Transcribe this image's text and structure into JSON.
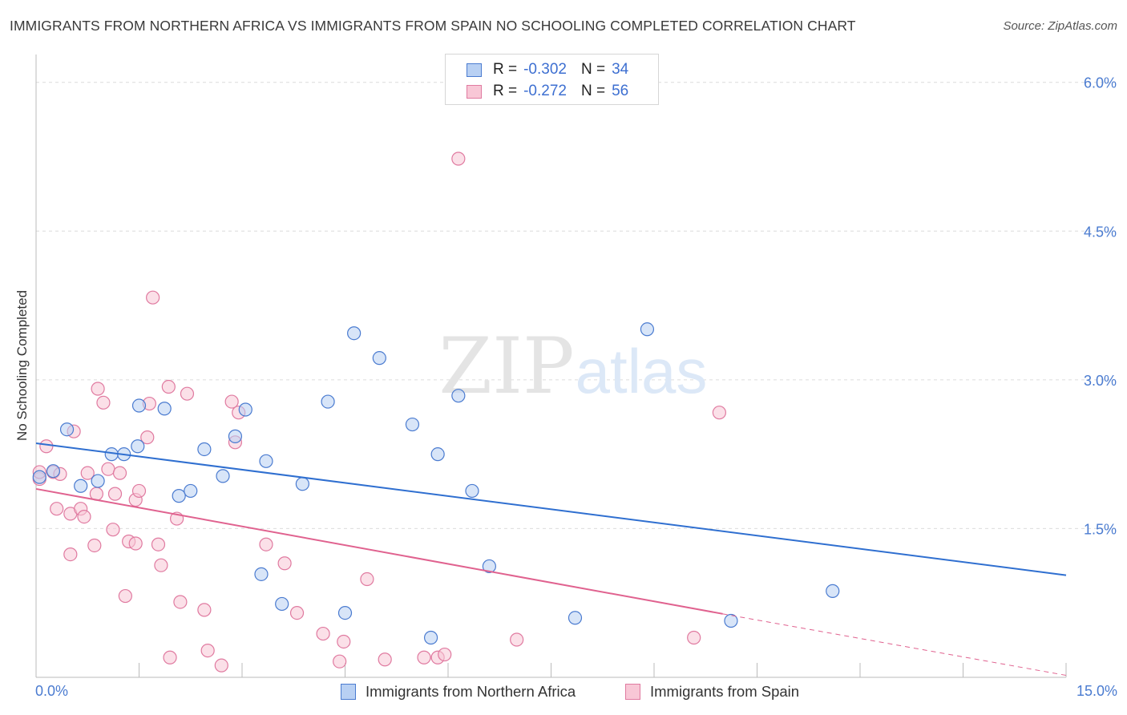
{
  "title": "IMMIGRANTS FROM NORTHERN AFRICA VS IMMIGRANTS FROM SPAIN NO SCHOOLING COMPLETED CORRELATION CHART",
  "source": "Source: ZipAtlas.com",
  "watermark": {
    "zip": "ZIP",
    "atlas": "atlas"
  },
  "colors": {
    "blue": "#4a7bd0",
    "blue_fill": "#b8d0f3",
    "blue_line": "#2f6fd0",
    "pink": "#e07aa0",
    "pink_fill": "#f8c7d6",
    "pink_line": "#e0628f",
    "grid": "#dcdcdc",
    "axis_text": "#4a7bd0"
  },
  "legend": {
    "rows": [
      {
        "r_label": "R =",
        "r_value": "-0.302",
        "n_label": "N =",
        "n_value": "34"
      },
      {
        "r_label": "R =",
        "r_value": "-0.272",
        "n_label": "N =",
        "n_value": "56"
      }
    ]
  },
  "chart_data": {
    "type": "scatter",
    "title": "IMMIGRANTS FROM NORTHERN AFRICA VS IMMIGRANTS FROM SPAIN NO SCHOOLING COMPLETED CORRELATION CHART",
    "xlabel": "",
    "ylabel": "No Schooling Completed",
    "xlim": [
      0,
      15
    ],
    "ylim": [
      0,
      6.2
    ],
    "x_tick_labels": {
      "min": "0.0%",
      "max": "15.0%"
    },
    "y_ticks": [
      1.5,
      3.0,
      4.5,
      6.0
    ],
    "y_tick_labels": [
      "1.5%",
      "3.0%",
      "4.5%",
      "6.0%"
    ],
    "series": [
      {
        "name": "Immigrants from Northern Africa",
        "color": "blue",
        "points": [
          [
            0.05,
            2.02
          ],
          [
            0.25,
            2.08
          ],
          [
            0.45,
            2.5
          ],
          [
            0.65,
            1.93
          ],
          [
            0.9,
            1.98
          ],
          [
            1.1,
            2.25
          ],
          [
            1.28,
            2.25
          ],
          [
            1.48,
            2.33
          ],
          [
            1.5,
            2.74
          ],
          [
            1.87,
            2.71
          ],
          [
            2.08,
            1.83
          ],
          [
            2.25,
            1.88
          ],
          [
            2.45,
            2.3
          ],
          [
            2.72,
            2.03
          ],
          [
            2.9,
            2.43
          ],
          [
            3.05,
            2.7
          ],
          [
            3.28,
            1.04
          ],
          [
            3.35,
            2.18
          ],
          [
            3.58,
            0.74
          ],
          [
            3.88,
            1.95
          ],
          [
            4.25,
            2.78
          ],
          [
            4.5,
            0.65
          ],
          [
            4.63,
            3.47
          ],
          [
            5.0,
            3.22
          ],
          [
            5.48,
            2.55
          ],
          [
            5.75,
            0.4
          ],
          [
            5.85,
            2.25
          ],
          [
            6.15,
            2.84
          ],
          [
            6.35,
            1.88
          ],
          [
            6.6,
            1.12
          ],
          [
            7.85,
            0.6
          ],
          [
            8.9,
            3.51
          ],
          [
            10.12,
            0.57
          ],
          [
            11.6,
            0.87
          ]
        ],
        "trend": {
          "x0": 0,
          "y0": 2.36,
          "x1": 15,
          "y1": 1.03
        }
      },
      {
        "name": "Immigrants from Spain",
        "color": "pink",
        "points": [
          [
            0.05,
            2.0
          ],
          [
            0.15,
            2.33
          ],
          [
            0.25,
            2.07
          ],
          [
            0.3,
            1.7
          ],
          [
            0.35,
            2.05
          ],
          [
            0.5,
            1.65
          ],
          [
            0.5,
            1.24
          ],
          [
            0.55,
            2.48
          ],
          [
            0.65,
            1.7
          ],
          [
            0.7,
            1.62
          ],
          [
            0.75,
            2.06
          ],
          [
            0.85,
            1.33
          ],
          [
            0.88,
            1.85
          ],
          [
            0.9,
            2.91
          ],
          [
            0.98,
            2.77
          ],
          [
            1.05,
            2.1
          ],
          [
            1.12,
            1.49
          ],
          [
            1.15,
            1.85
          ],
          [
            1.22,
            2.06
          ],
          [
            1.3,
            0.82
          ],
          [
            1.35,
            1.37
          ],
          [
            1.45,
            1.35
          ],
          [
            1.45,
            1.79
          ],
          [
            1.5,
            1.88
          ],
          [
            1.62,
            2.42
          ],
          [
            1.65,
            2.76
          ],
          [
            1.7,
            3.83
          ],
          [
            1.78,
            1.34
          ],
          [
            1.82,
            1.13
          ],
          [
            1.93,
            2.93
          ],
          [
            1.95,
            0.2
          ],
          [
            2.05,
            1.6
          ],
          [
            2.1,
            0.76
          ],
          [
            2.2,
            2.86
          ],
          [
            2.45,
            0.68
          ],
          [
            2.5,
            0.27
          ],
          [
            2.7,
            0.12
          ],
          [
            2.85,
            2.78
          ],
          [
            2.9,
            2.37
          ],
          [
            2.95,
            2.67
          ],
          [
            3.35,
            1.34
          ],
          [
            3.62,
            1.15
          ],
          [
            3.8,
            0.65
          ],
          [
            4.18,
            0.44
          ],
          [
            4.42,
            0.16
          ],
          [
            4.48,
            0.36
          ],
          [
            4.82,
            0.99
          ],
          [
            5.08,
            0.18
          ],
          [
            5.65,
            0.2
          ],
          [
            5.85,
            0.2
          ],
          [
            5.95,
            0.23
          ],
          [
            6.15,
            5.23
          ],
          [
            7.0,
            0.38
          ],
          [
            9.58,
            0.4
          ],
          [
            9.95,
            2.67
          ],
          [
            0.05,
            2.07
          ]
        ],
        "trend": {
          "x0": 0,
          "y0": 1.9,
          "x1": 10.0,
          "y1": 0.64
        },
        "trend_dashed": {
          "x0": 10.0,
          "y0": 0.64,
          "x1": 15,
          "y1": 0.02
        }
      }
    ]
  },
  "bottom_legend": {
    "northern_africa": "Immigrants from Northern Africa",
    "spain": "Immigrants from Spain"
  }
}
